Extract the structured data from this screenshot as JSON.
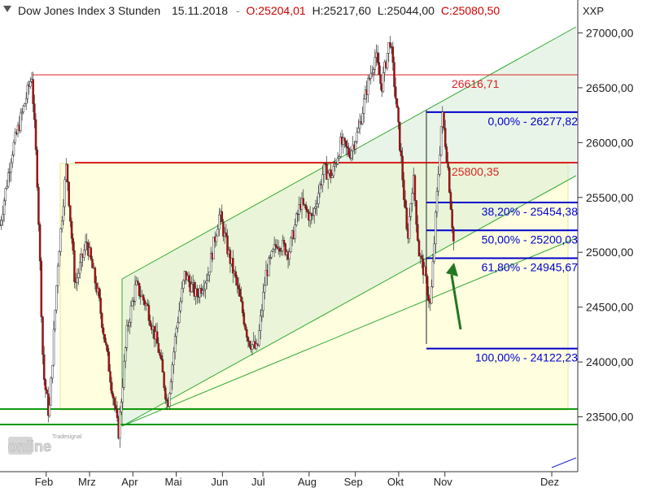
{
  "header": {
    "title": "Dow Jones Index 3 Stunden",
    "date": "15.11.2018",
    "open": "O:25204,01",
    "high": "H:25217,60",
    "low": "L:25044,00",
    "close": "C:25080,50",
    "symbol": "XXP"
  },
  "logo": {
    "brand": "Tradesignal",
    "text": "online"
  },
  "chart_data": {
    "type": "candlestick",
    "title": "Dow Jones Index 3 Stunden",
    "ylim": [
      23000,
      27300
    ],
    "y_ticks": [
      "27000,00",
      "26500,00",
      "26000,00",
      "25500,00",
      "25000,00",
      "24500,00",
      "24000,00",
      "23500,00"
    ],
    "y_tick_values": [
      27000,
      26500,
      26000,
      25500,
      25000,
      24500,
      24000,
      23500
    ],
    "x_ticks": [
      "Feb",
      "Mrz",
      "Apr",
      "Mai",
      "Jun",
      "Jul",
      "Aug",
      "Sep",
      "Okt",
      "Nov",
      "Dez"
    ],
    "x_tick_positions": [
      0.08,
      0.155,
      0.23,
      0.305,
      0.385,
      0.455,
      0.535,
      0.615,
      0.69,
      0.77,
      0.955
    ],
    "price_path": [
      [
        0.0,
        25250
      ],
      [
        0.02,
        25900
      ],
      [
        0.04,
        26300
      ],
      [
        0.055,
        26616
      ],
      [
        0.065,
        25600
      ],
      [
        0.075,
        23900
      ],
      [
        0.085,
        23500
      ],
      [
        0.1,
        24900
      ],
      [
        0.115,
        25800
      ],
      [
        0.13,
        24700
      ],
      [
        0.15,
        25100
      ],
      [
        0.17,
        24600
      ],
      [
        0.19,
        23900
      ],
      [
        0.205,
        23350
      ],
      [
        0.22,
        24300
      ],
      [
        0.235,
        24700
      ],
      [
        0.255,
        24500
      ],
      [
        0.275,
        24100
      ],
      [
        0.29,
        23600
      ],
      [
        0.305,
        24300
      ],
      [
        0.32,
        24800
      ],
      [
        0.34,
        24600
      ],
      [
        0.36,
        24800
      ],
      [
        0.38,
        25350
      ],
      [
        0.395,
        25000
      ],
      [
        0.41,
        24700
      ],
      [
        0.43,
        24200
      ],
      [
        0.445,
        24100
      ],
      [
        0.46,
        24800
      ],
      [
        0.48,
        25100
      ],
      [
        0.5,
        25000
      ],
      [
        0.52,
        25450
      ],
      [
        0.54,
        25300
      ],
      [
        0.56,
        25750
      ],
      [
        0.575,
        25700
      ],
      [
        0.59,
        26000
      ],
      [
        0.605,
        25900
      ],
      [
        0.62,
        26100
      ],
      [
        0.635,
        26500
      ],
      [
        0.65,
        26800
      ],
      [
        0.66,
        26500
      ],
      [
        0.675,
        26950
      ],
      [
        0.685,
        26400
      ],
      [
        0.695,
        25800
      ],
      [
        0.705,
        25100
      ],
      [
        0.715,
        25700
      ],
      [
        0.725,
        25000
      ],
      [
        0.735,
        24800
      ],
      [
        0.745,
        24500
      ],
      [
        0.755,
        25400
      ],
      [
        0.765,
        26277
      ],
      [
        0.775,
        25800
      ],
      [
        0.785,
        25100
      ]
    ],
    "annotations": {
      "resistance_top": "26616,71",
      "resistance_mid": "25800,35",
      "fib_levels": [
        {
          "label": "0,00% - 26277,82",
          "value": 26277.82
        },
        {
          "label": "38,20% - 25454,38",
          "value": 25454.38
        },
        {
          "label": "50,00% - 25200,03",
          "value": 25200.03
        },
        {
          "label": "61,80% - 24945,67",
          "value": 24945.67
        },
        {
          "label": "100,00% - 24122,23",
          "value": 24122.23
        }
      ],
      "support_levels": [
        23520,
        23370
      ]
    },
    "colors": {
      "candle_up": "#006600",
      "candle_down": "#cc0000",
      "fib_line": "#0000cc",
      "resistance": "#dd2222",
      "support": "#119911",
      "channel": "#22aa22",
      "rect_fill": "#ffffcc",
      "arrow": "#227722"
    }
  }
}
